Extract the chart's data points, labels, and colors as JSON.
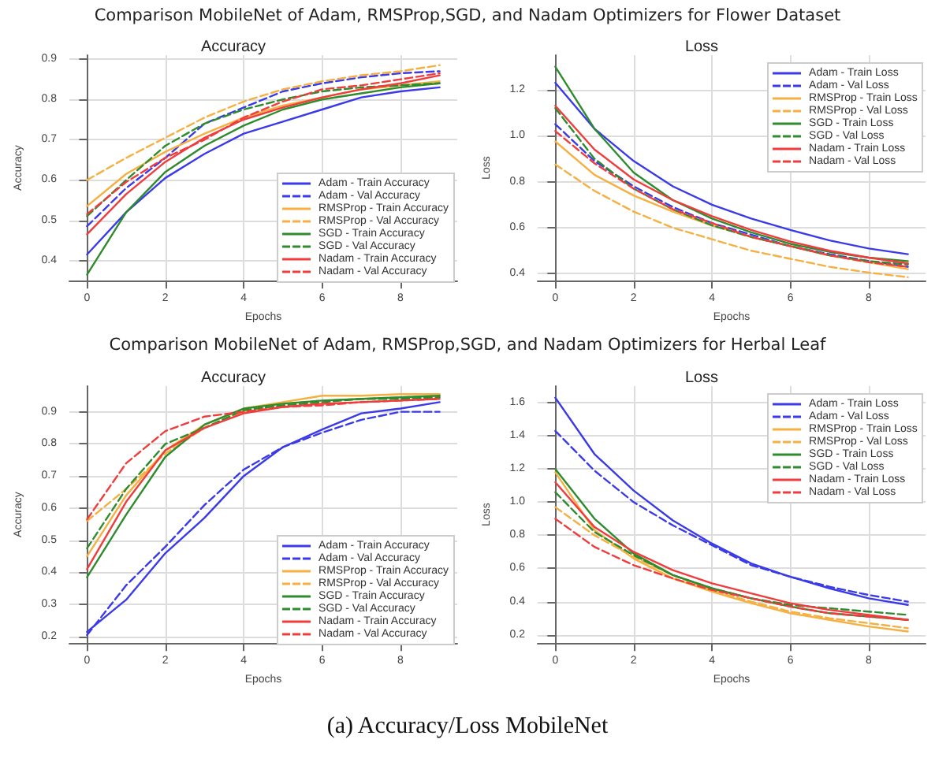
{
  "chart_data": [
    {
      "type": "line",
      "title": "Accuracy",
      "xlabel": "Epochs",
      "ylabel": "Accuracy",
      "annotations": [
        "Comparison MobileNet of Adam, RMSProp,SGD, and Nadam Optimizers for Flower Dataset"
      ],
      "x": [
        0,
        1,
        2,
        3,
        4,
        5,
        6,
        7,
        8,
        9
      ],
      "xlim": [
        -0.45,
        9.45
      ],
      "xticks": [
        0,
        2,
        4,
        6,
        8
      ],
      "ylim": [
        0.35,
        0.91
      ],
      "yticks": [
        0.4,
        0.5,
        0.6,
        0.7,
        0.8,
        0.9
      ],
      "grid": true,
      "legend": "bottom right",
      "marker": "none",
      "series": [
        {
          "name": "Adam - Train Accuracy",
          "color": "#3a3ae8",
          "line_style": "solid",
          "values": [
            0.415,
            0.52,
            0.605,
            0.665,
            0.715,
            0.745,
            0.775,
            0.805,
            0.82,
            0.83
          ]
        },
        {
          "name": "Adam - Val Accuracy",
          "color": "#3a3ae8",
          "line_style": "dashed",
          "values": [
            0.485,
            0.58,
            0.655,
            0.74,
            0.78,
            0.82,
            0.84,
            0.855,
            0.865,
            0.87
          ]
        },
        {
          "name": "RMSProp - Train Accuracy",
          "color": "#f5b041",
          "line_style": "solid",
          "values": [
            0.535,
            0.615,
            0.67,
            0.715,
            0.755,
            0.785,
            0.805,
            0.825,
            0.835,
            0.845
          ]
        },
        {
          "name": "RMSProp - Val Accuracy",
          "color": "#f5b041",
          "line_style": "dashed",
          "values": [
            0.6,
            0.655,
            0.705,
            0.755,
            0.795,
            0.825,
            0.845,
            0.86,
            0.87,
            0.885
          ]
        },
        {
          "name": "SGD - Train Accuracy",
          "color": "#2e8b2e",
          "line_style": "solid",
          "values": [
            0.365,
            0.52,
            0.62,
            0.685,
            0.735,
            0.775,
            0.8,
            0.815,
            0.83,
            0.84
          ]
        },
        {
          "name": "SGD - Val Accuracy",
          "color": "#2e8b2e",
          "line_style": "dashed",
          "values": [
            0.51,
            0.6,
            0.685,
            0.74,
            0.775,
            0.8,
            0.82,
            0.83,
            0.835,
            0.84
          ]
        },
        {
          "name": "Nadam - Train Accuracy",
          "color": "#f03c3c",
          "line_style": "solid",
          "values": [
            0.465,
            0.565,
            0.645,
            0.705,
            0.75,
            0.78,
            0.805,
            0.825,
            0.84,
            0.86
          ]
        },
        {
          "name": "Nadam - Val Accuracy",
          "color": "#f03c3c",
          "line_style": "dashed",
          "values": [
            0.515,
            0.595,
            0.655,
            0.7,
            0.755,
            0.795,
            0.825,
            0.835,
            0.85,
            0.865
          ]
        }
      ]
    },
    {
      "type": "line",
      "title": "Loss",
      "xlabel": "Epochs",
      "ylabel": "Loss",
      "x": [
        0,
        1,
        2,
        3,
        4,
        5,
        6,
        7,
        8,
        9
      ],
      "xlim": [
        -0.45,
        9.45
      ],
      "xticks": [
        0,
        2,
        4,
        6,
        8
      ],
      "ylim": [
        0.37,
        1.35
      ],
      "yticks": [
        0.4,
        0.6,
        0.8,
        {
          "value": 1,
          "label": "1.0"
        },
        1.2
      ],
      "grid": true,
      "legend": "top right",
      "marker": "none",
      "series": [
        {
          "name": "Adam - Train Loss",
          "color": "#3a3ae8",
          "line_style": "solid",
          "values": [
            1.23,
            1.03,
            0.89,
            0.78,
            0.7,
            0.64,
            0.59,
            0.545,
            0.51,
            0.485
          ]
        },
        {
          "name": "Adam - Val Loss",
          "color": "#3a3ae8",
          "line_style": "dashed",
          "values": [
            1.05,
            0.89,
            0.78,
            0.69,
            0.62,
            0.57,
            0.52,
            0.485,
            0.455,
            0.43
          ]
        },
        {
          "name": "RMSProp - Train Loss",
          "color": "#f5b041",
          "line_style": "solid",
          "values": [
            0.975,
            0.83,
            0.74,
            0.67,
            0.61,
            0.56,
            0.52,
            0.48,
            0.45,
            0.42
          ]
        },
        {
          "name": "RMSProp - Val Loss",
          "color": "#f5b041",
          "line_style": "dashed",
          "values": [
            0.875,
            0.76,
            0.67,
            0.6,
            0.55,
            0.5,
            0.465,
            0.43,
            0.405,
            0.385
          ]
        },
        {
          "name": "SGD - Train Loss",
          "color": "#2e8b2e",
          "line_style": "solid",
          "values": [
            1.3,
            1.03,
            0.84,
            0.72,
            0.64,
            0.58,
            0.53,
            0.495,
            0.47,
            0.455
          ]
        },
        {
          "name": "SGD - Val Loss",
          "color": "#2e8b2e",
          "line_style": "dashed",
          "values": [
            1.12,
            0.9,
            0.77,
            0.68,
            0.61,
            0.56,
            0.52,
            0.48,
            0.455,
            0.44
          ]
        },
        {
          "name": "Nadam - Train Loss",
          "color": "#f03c3c",
          "line_style": "solid",
          "values": [
            1.13,
            0.94,
            0.81,
            0.72,
            0.65,
            0.59,
            0.54,
            0.5,
            0.47,
            0.445
          ]
        },
        {
          "name": "Nadam - Val Loss",
          "color": "#f03c3c",
          "line_style": "dashed",
          "values": [
            1.02,
            0.88,
            0.77,
            0.68,
            0.62,
            0.56,
            0.52,
            0.48,
            0.45,
            0.43
          ]
        }
      ]
    },
    {
      "type": "line",
      "title": "Accuracy",
      "xlabel": "Epochs",
      "ylabel": "Accuracy",
      "annotations": [
        "Comparison MobileNet of Adam, RMSProp,SGD, and Nadam Optimizers for Herbal Leaf",
        "(a)  Accuracy/Loss MobileNet"
      ],
      "x": [
        0,
        1,
        2,
        3,
        4,
        5,
        6,
        7,
        8,
        9
      ],
      "xlim": [
        -0.45,
        9.45
      ],
      "xticks": [
        0,
        2,
        4,
        6,
        8
      ],
      "ylim": [
        0.18,
        0.98
      ],
      "yticks": [
        0.2,
        0.3,
        0.4,
        0.5,
        0.6,
        0.7,
        0.8,
        0.9
      ],
      "grid": true,
      "legend": "bottom right",
      "marker": "none",
      "series": [
        {
          "name": "Adam - Train Accuracy",
          "color": "#3a3ae8",
          "line_style": "solid",
          "values": [
            0.215,
            0.315,
            0.46,
            0.57,
            0.7,
            0.79,
            0.845,
            0.895,
            0.91,
            0.93
          ]
        },
        {
          "name": "Adam - Val Accuracy",
          "color": "#3a3ae8",
          "line_style": "dashed",
          "values": [
            0.205,
            0.36,
            0.48,
            0.61,
            0.72,
            0.79,
            0.835,
            0.875,
            0.9,
            0.9
          ]
        },
        {
          "name": "RMSProp - Train Accuracy",
          "color": "#f5b041",
          "line_style": "solid",
          "values": [
            0.45,
            0.64,
            0.78,
            0.86,
            0.91,
            0.93,
            0.95,
            0.95,
            0.955,
            0.955
          ]
        },
        {
          "name": "RMSProp - Val Accuracy",
          "color": "#f5b041",
          "line_style": "dashed",
          "values": [
            0.56,
            0.66,
            0.77,
            0.85,
            0.9,
            0.925,
            0.935,
            0.94,
            0.945,
            0.95
          ]
        },
        {
          "name": "SGD - Train Accuracy",
          "color": "#2e8b2e",
          "line_style": "solid",
          "values": [
            0.385,
            0.58,
            0.76,
            0.86,
            0.91,
            0.925,
            0.935,
            0.94,
            0.945,
            0.95
          ]
        },
        {
          "name": "SGD - Val Accuracy",
          "color": "#2e8b2e",
          "line_style": "dashed",
          "values": [
            0.475,
            0.66,
            0.8,
            0.85,
            0.905,
            0.92,
            0.93,
            0.94,
            0.94,
            0.945
          ]
        },
        {
          "name": "Nadam - Train Accuracy",
          "color": "#f03c3c",
          "line_style": "solid",
          "values": [
            0.41,
            0.62,
            0.78,
            0.85,
            0.895,
            0.915,
            0.925,
            0.93,
            0.935,
            0.94
          ]
        },
        {
          "name": "Nadam - Val Accuracy",
          "color": "#f03c3c",
          "line_style": "dashed",
          "values": [
            0.565,
            0.74,
            0.84,
            0.885,
            0.9,
            0.915,
            0.92,
            0.93,
            0.935,
            0.94
          ]
        }
      ]
    },
    {
      "type": "line",
      "title": "Loss",
      "xlabel": "Epochs",
      "ylabel": "Loss",
      "x": [
        0,
        1,
        2,
        3,
        4,
        5,
        6,
        7,
        8,
        9
      ],
      "xlim": [
        -0.45,
        9.45
      ],
      "xticks": [
        0,
        2,
        4,
        6,
        8
      ],
      "ylim": [
        0.15,
        1.7
      ],
      "yticks": [
        0.2,
        0.4,
        0.6,
        0.8,
        {
          "value": 1,
          "label": "1.0"
        },
        1.2,
        1.4,
        1.6
      ],
      "grid": true,
      "legend": "top right",
      "marker": "none",
      "series": [
        {
          "name": "Adam - Train Loss",
          "color": "#3a3ae8",
          "line_style": "solid",
          "values": [
            1.63,
            1.29,
            1.07,
            0.89,
            0.75,
            0.63,
            0.55,
            0.48,
            0.42,
            0.38
          ]
        },
        {
          "name": "Adam - Val Loss",
          "color": "#3a3ae8",
          "line_style": "dashed",
          "values": [
            1.43,
            1.19,
            1.0,
            0.86,
            0.74,
            0.62,
            0.55,
            0.49,
            0.44,
            0.4
          ]
        },
        {
          "name": "RMSProp - Train Loss",
          "color": "#f5b041",
          "line_style": "solid",
          "values": [
            1.18,
            0.83,
            0.66,
            0.54,
            0.46,
            0.39,
            0.33,
            0.29,
            0.25,
            0.22
          ]
        },
        {
          "name": "RMSProp - Val Loss",
          "color": "#f5b041",
          "line_style": "dashed",
          "values": [
            0.97,
            0.8,
            0.67,
            0.56,
            0.47,
            0.4,
            0.34,
            0.3,
            0.27,
            0.24
          ]
        },
        {
          "name": "SGD - Train Loss",
          "color": "#2e8b2e",
          "line_style": "solid",
          "values": [
            1.2,
            0.9,
            0.69,
            0.56,
            0.48,
            0.42,
            0.37,
            0.33,
            0.31,
            0.29
          ]
        },
        {
          "name": "SGD - Val Loss",
          "color": "#2e8b2e",
          "line_style": "dashed",
          "values": [
            1.06,
            0.82,
            0.68,
            0.56,
            0.48,
            0.42,
            0.38,
            0.36,
            0.34,
            0.32
          ]
        },
        {
          "name": "Nadam - Train Loss",
          "color": "#f03c3c",
          "line_style": "solid",
          "values": [
            1.12,
            0.85,
            0.7,
            0.59,
            0.51,
            0.45,
            0.39,
            0.35,
            0.32,
            0.29
          ]
        },
        {
          "name": "Nadam - Val Loss",
          "color": "#f03c3c",
          "line_style": "dashed",
          "values": [
            0.9,
            0.73,
            0.62,
            0.54,
            0.47,
            0.42,
            0.37,
            0.33,
            0.31,
            0.29
          ]
        }
      ]
    }
  ]
}
